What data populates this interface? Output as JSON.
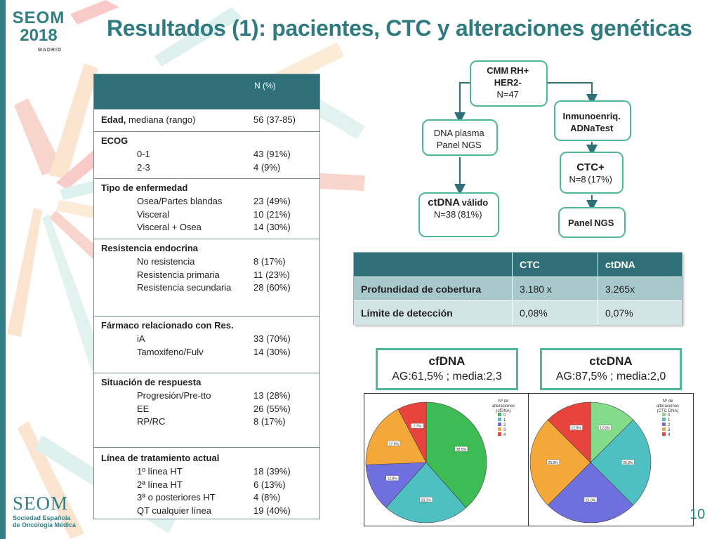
{
  "header": {
    "title": "Resultados (1): pacientes, CTC y alteraciones genéticas",
    "logo_text": "SEOM",
    "logo_year": "2018",
    "logo_city": "MADRID"
  },
  "patient_table": {
    "col_header": "N (%)",
    "sections": [
      {
        "title": "Edad,",
        "title_rest": " mediana (rango)",
        "title_value": "56 (37-85)",
        "rows": []
      },
      {
        "title": "ECOG",
        "title_rest": "",
        "title_value": "",
        "rows": [
          {
            "label": "0-1",
            "value": "43 (91%)"
          },
          {
            "label": "2-3",
            "value": "4 (9%)"
          }
        ]
      },
      {
        "title": "Tipo de enfermedad",
        "title_rest": "",
        "title_value": "",
        "rows": [
          {
            "label": "Osea/Partes blandas",
            "value": "23 (49%)"
          },
          {
            "label": "Visceral",
            "value": "10 (21%)"
          },
          {
            "label": "Visceral + Osea",
            "value": "14 (30%)"
          }
        ]
      },
      {
        "title": "Resistencia endocrina",
        "title_rest": "",
        "title_value": "",
        "rows": [
          {
            "label": "No resistencia",
            "value": "8 (17%)"
          },
          {
            "label": "Resistencia primaria",
            "value": "11 (23%)"
          },
          {
            "label": "Resistencia secundaria",
            "value": "28 (60%)"
          }
        ]
      },
      {
        "title": "Fármaco relacionado con Res.",
        "title_rest": "",
        "title_value": "",
        "rows": [
          {
            "label": "iA",
            "value": "33 (70%)"
          },
          {
            "label": "Tamoxifeno/Fulv",
            "value": "14 (30%)"
          }
        ]
      },
      {
        "title": "Situación de respuesta",
        "title_rest": "",
        "title_value": "",
        "rows": [
          {
            "label": "Progresión/Pre-tto",
            "value": "13 (28%)"
          },
          {
            "label": "EE",
            "value": "26 (55%)"
          },
          {
            "label": "RP/RC",
            "value": "8 (17%)"
          }
        ]
      },
      {
        "title": "Línea de tratamiento actual",
        "title_rest": "",
        "title_value": "",
        "rows": [
          {
            "label": "1º línea HT",
            "value": "18  (39%)"
          },
          {
            "label": "2ª línea HT",
            "value": "6 (13%)"
          },
          {
            "label": "3ª o posteriores HT",
            "value": "4 (8%)"
          },
          {
            "label": "QT cualquier línea",
            "value": "19 (40%)"
          }
        ]
      }
    ]
  },
  "flow": {
    "root": {
      "line1": "CMM RH+ ",
      "line2": "HER2- ",
      "line3": "N=47 "
    },
    "dna": {
      "line1": "DNA plasma ",
      "line2": "Panel NGS "
    },
    "ctdna": {
      "line1a": "ctDNA",
      "line1b": " válido ",
      "line2": "N=38 (81%) ",
      "line3": " "
    },
    "immuno": {
      "line1": "Inmunoenriq. ",
      "line2": "ADNaTest "
    },
    "ctc": {
      "line1": "CTC+ ",
      "line2": "N=8 (17%) "
    },
    "panel": {
      "line1": "Panel NGS "
    }
  },
  "coverage_table": {
    "headers": [
      "",
      "CTC",
      "ctDNA"
    ],
    "rows": [
      {
        "label": "Profundidad de cobertura",
        "ctc": "3.180 x",
        "ctdna": "3.265x"
      },
      {
        "label": "Límite de detección",
        "ctc": "0,08%",
        "ctdna": "0,07%"
      }
    ]
  },
  "cfdna_box": {
    "title": "cfDNA",
    "subtitle": "AG:61,5% ; media:2,3"
  },
  "ctcdna_box": {
    "title": "ctcDNA",
    "subtitle": "AG:87,5% ; media:2,0"
  },
  "chart_data": [
    {
      "type": "pie",
      "title": "",
      "legend_title": "Nº de alteraciones (cfDNA)",
      "legend_position": "top-right",
      "categories": [
        "0",
        "1",
        "2",
        "3",
        "4"
      ],
      "values": [
        38.5,
        23.1,
        12.8,
        17.9,
        7.7
      ],
      "slice_labels": [
        "38,5%",
        "23,1%",
        "12,8%",
        "17,9%",
        "7,7%"
      ],
      "colors": [
        "#3dbb55",
        "#4ec0c2",
        "#6f6fe0",
        "#f5a83a",
        "#e8433c"
      ]
    },
    {
      "type": "pie",
      "title": "",
      "legend_title": "Nº de alteraciones (CTC DNA)",
      "legend_position": "top-right",
      "categories": [
        "0",
        "1",
        "2",
        "3",
        "4"
      ],
      "values": [
        12.5,
        25.0,
        25.0,
        25.0,
        12.5
      ],
      "slice_labels": [
        "12,5%",
        "25,0%",
        "25,0%",
        "25,0%",
        "12,5%"
      ],
      "colors": [
        "#84dc8a",
        "#4ec0c2",
        "#6f6fe0",
        "#f5a83a",
        "#e8433c"
      ]
    }
  ],
  "footer": {
    "logo_main": "SEOM",
    "logo_sub1": "Sociedad Española",
    "logo_sub2": "de Oncología Médica",
    "page_number": "10"
  }
}
